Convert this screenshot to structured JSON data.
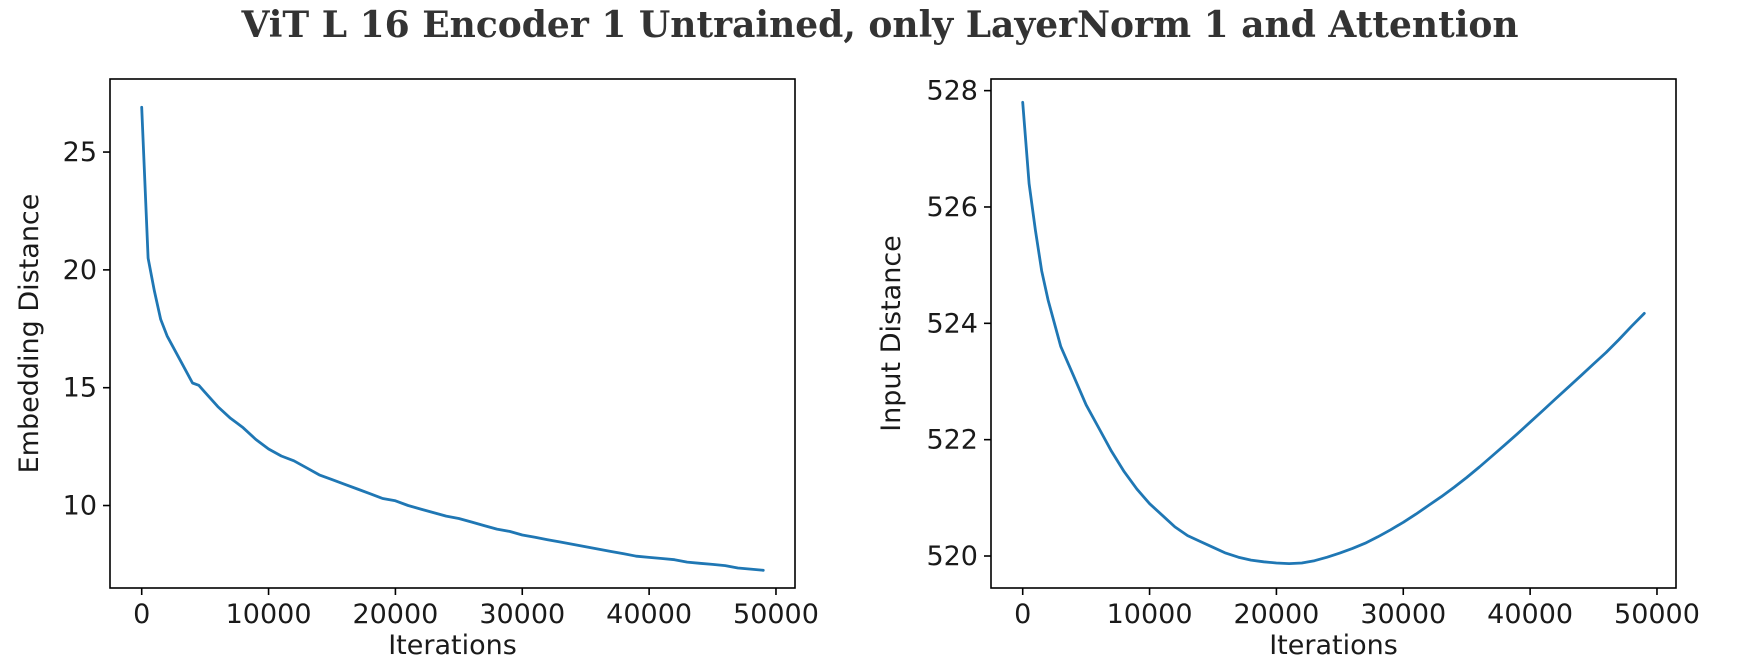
{
  "title": "ViT L 16 Encoder 1 Untrained, only LayerNorm 1 and Attention",
  "chart_data": [
    {
      "type": "line",
      "xlabel": "Iterations",
      "ylabel": "Embedding Distance",
      "xlim": [
        -2500,
        51500
      ],
      "ylim": [
        6.5,
        28.1
      ],
      "xticks": [
        0,
        10000,
        20000,
        30000,
        40000,
        50000
      ],
      "yticks": [
        10,
        15,
        20,
        25
      ],
      "grid": false,
      "color": "#1f77b4",
      "series": [
        {
          "x": [
            0,
            500,
            1000,
            1500,
            2000,
            3000,
            4000,
            4500,
            5000,
            6000,
            7000,
            7500,
            8000,
            9000,
            10000,
            11000,
            12000,
            13000,
            14000,
            15000,
            16000,
            17000,
            18000,
            19000,
            20000,
            21000,
            22000,
            23000,
            24000,
            25000,
            26000,
            27000,
            28000,
            29000,
            30000,
            31000,
            32000,
            33000,
            34000,
            35000,
            36000,
            37000,
            38000,
            39000,
            40000,
            41000,
            42000,
            43000,
            44000,
            45000,
            46000,
            47000,
            48000,
            49000
          ],
          "values": [
            26.9,
            20.5,
            19.1,
            17.9,
            17.2,
            16.2,
            15.2,
            15.1,
            14.8,
            14.2,
            13.7,
            13.5,
            13.3,
            12.8,
            12.4,
            12.1,
            11.9,
            11.6,
            11.3,
            11.1,
            10.9,
            10.7,
            10.5,
            10.3,
            10.2,
            10.0,
            9.85,
            9.7,
            9.55,
            9.45,
            9.3,
            9.15,
            9.0,
            8.9,
            8.75,
            8.65,
            8.55,
            8.45,
            8.35,
            8.25,
            8.15,
            8.05,
            7.95,
            7.85,
            7.8,
            7.75,
            7.7,
            7.6,
            7.55,
            7.5,
            7.45,
            7.35,
            7.3,
            7.25
          ]
        }
      ]
    },
    {
      "type": "line",
      "xlabel": "Iterations",
      "ylabel": "Input Distance",
      "xlim": [
        -2500,
        51500
      ],
      "ylim": [
        519.45,
        528.2
      ],
      "xticks": [
        0,
        10000,
        20000,
        30000,
        40000,
        50000
      ],
      "yticks": [
        520,
        522,
        524,
        526,
        528
      ],
      "grid": false,
      "color": "#1f77b4",
      "series": [
        {
          "x": [
            0,
            500,
            1000,
            1500,
            2000,
            3000,
            4000,
            5000,
            6000,
            7000,
            8000,
            9000,
            10000,
            11000,
            12000,
            13000,
            14000,
            15000,
            16000,
            17000,
            18000,
            19000,
            20000,
            21000,
            22000,
            23000,
            24000,
            25000,
            26000,
            27000,
            28000,
            29000,
            30000,
            31000,
            32000,
            33000,
            34000,
            35000,
            36000,
            37000,
            38000,
            39000,
            40000,
            41000,
            42000,
            43000,
            44000,
            45000,
            46000,
            47000,
            48000,
            49000
          ],
          "values": [
            527.8,
            526.4,
            525.6,
            524.9,
            524.4,
            523.6,
            523.1,
            522.6,
            522.2,
            521.8,
            521.45,
            521.15,
            520.9,
            520.7,
            520.5,
            520.35,
            520.25,
            520.15,
            520.05,
            519.98,
            519.93,
            519.9,
            519.88,
            519.87,
            519.88,
            519.92,
            519.98,
            520.05,
            520.13,
            520.22,
            520.33,
            520.45,
            520.58,
            520.72,
            520.87,
            521.02,
            521.18,
            521.35,
            521.53,
            521.72,
            521.91,
            522.1,
            522.3,
            522.5,
            522.7,
            522.9,
            523.1,
            523.3,
            523.5,
            523.72,
            523.95,
            524.17
          ]
        }
      ]
    }
  ]
}
